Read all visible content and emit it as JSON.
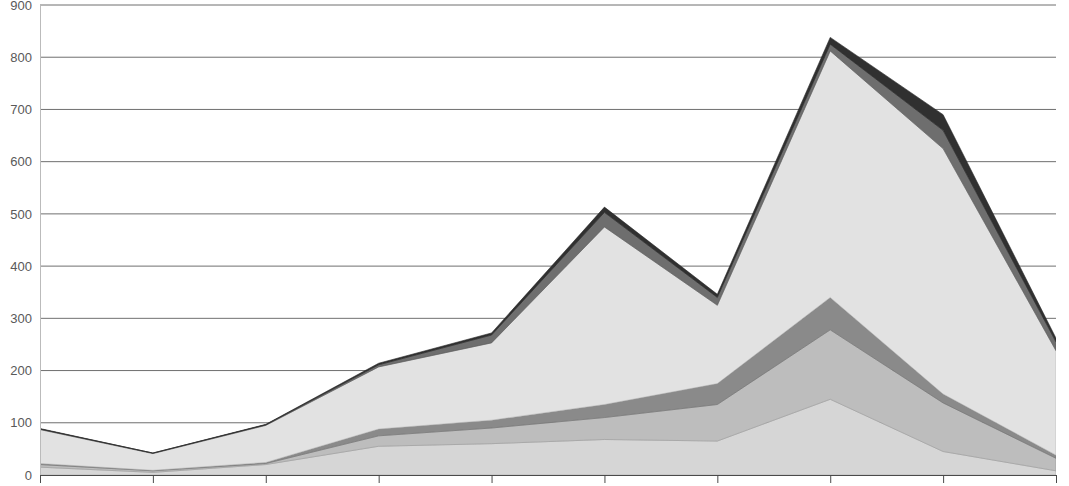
{
  "chart_data": {
    "type": "area",
    "stacked": true,
    "grid": true,
    "tick_labels": "y",
    "categories": [
      null,
      null,
      null,
      null,
      null,
      null,
      null,
      null,
      null,
      null
    ],
    "ylim": [
      0,
      900
    ],
    "yticks": [
      0,
      100,
      200,
      300,
      400,
      500,
      600,
      700,
      800,
      900
    ],
    "series": [
      {
        "color": "#d6d6d6",
        "values": [
          15,
          5,
          20,
          55,
          60,
          68,
          65,
          145,
          45,
          8
        ]
      },
      {
        "color": "#bdbdbd",
        "values": [
          5,
          3,
          2,
          20,
          30,
          42,
          70,
          133,
          93,
          24
        ]
      },
      {
        "color": "#8a8a8a",
        "values": [
          2,
          1,
          2,
          13,
          15,
          25,
          40,
          62,
          17,
          6
        ]
      },
      {
        "color": "#e2e2e2",
        "values": [
          65,
          32,
          71,
          119,
          148,
          340,
          150,
          472,
          470,
          200
        ]
      },
      {
        "color": "#6e6e6e",
        "values": [
          1,
          1,
          1,
          4,
          15,
          28,
          15,
          13,
          35,
          17
        ]
      },
      {
        "color": "#303030",
        "values": [
          1,
          0,
          1,
          3,
          4,
          10,
          6,
          13,
          30,
          7
        ]
      }
    ]
  }
}
